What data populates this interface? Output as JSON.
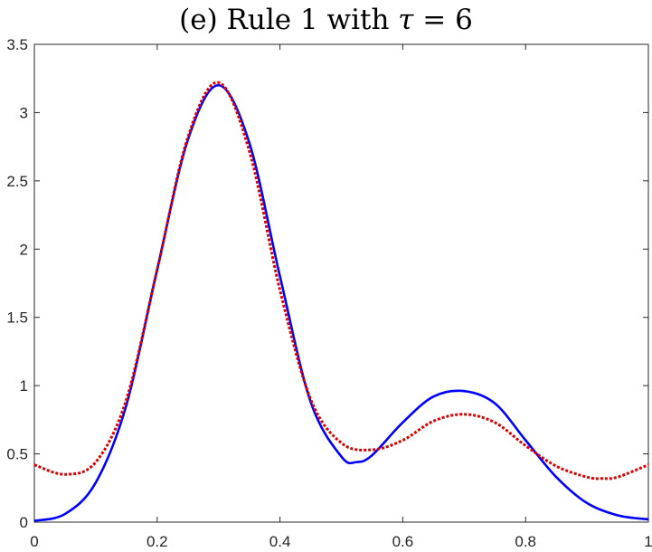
{
  "chart_data": {
    "type": "line",
    "title": {
      "prefix": "(e) Rule 1 with ",
      "symbol": "τ",
      "suffix": " = 6"
    },
    "xlabel": "",
    "ylabel": "",
    "xlim": [
      0,
      1
    ],
    "ylim": [
      0,
      3.5
    ],
    "xticks": [
      0,
      0.2,
      0.4,
      0.6,
      0.8,
      1
    ],
    "xtick_labels": [
      "0",
      "0.2",
      "0.4",
      "0.6",
      "0.8",
      "1"
    ],
    "yticks": [
      0,
      0.5,
      1,
      1.5,
      2,
      2.5,
      3,
      3.5
    ],
    "ytick_labels": [
      "0",
      "0.5",
      "1",
      "1.5",
      "2",
      "2.5",
      "3",
      "3.5"
    ],
    "grid": false,
    "series": [
      {
        "color": "#0000ff",
        "style": "solid",
        "x": [
          0,
          0.05,
          0.1,
          0.15,
          0.2,
          0.25,
          0.3,
          0.35,
          0.4,
          0.45,
          0.5,
          0.525,
          0.55,
          0.6,
          0.65,
          0.7,
          0.75,
          0.8,
          0.85,
          0.9,
          0.95,
          1
        ],
        "y": [
          0.01,
          0.06,
          0.29,
          0.86,
          1.85,
          2.8,
          3.2,
          2.78,
          1.8,
          0.88,
          0.48,
          0.44,
          0.49,
          0.73,
          0.92,
          0.96,
          0.87,
          0.6,
          0.33,
          0.14,
          0.05,
          0.02
        ]
      },
      {
        "color": "#dd0000",
        "style": "dotted",
        "x": [
          0,
          0.05,
          0.1,
          0.15,
          0.2,
          0.25,
          0.3,
          0.35,
          0.4,
          0.45,
          0.5,
          0.55,
          0.6,
          0.65,
          0.7,
          0.75,
          0.8,
          0.85,
          0.9,
          0.925,
          0.95,
          1
        ],
        "y": [
          0.42,
          0.35,
          0.44,
          0.9,
          1.85,
          2.82,
          3.22,
          2.72,
          1.7,
          0.9,
          0.58,
          0.53,
          0.6,
          0.74,
          0.79,
          0.73,
          0.56,
          0.41,
          0.33,
          0.32,
          0.33,
          0.42
        ]
      }
    ]
  }
}
